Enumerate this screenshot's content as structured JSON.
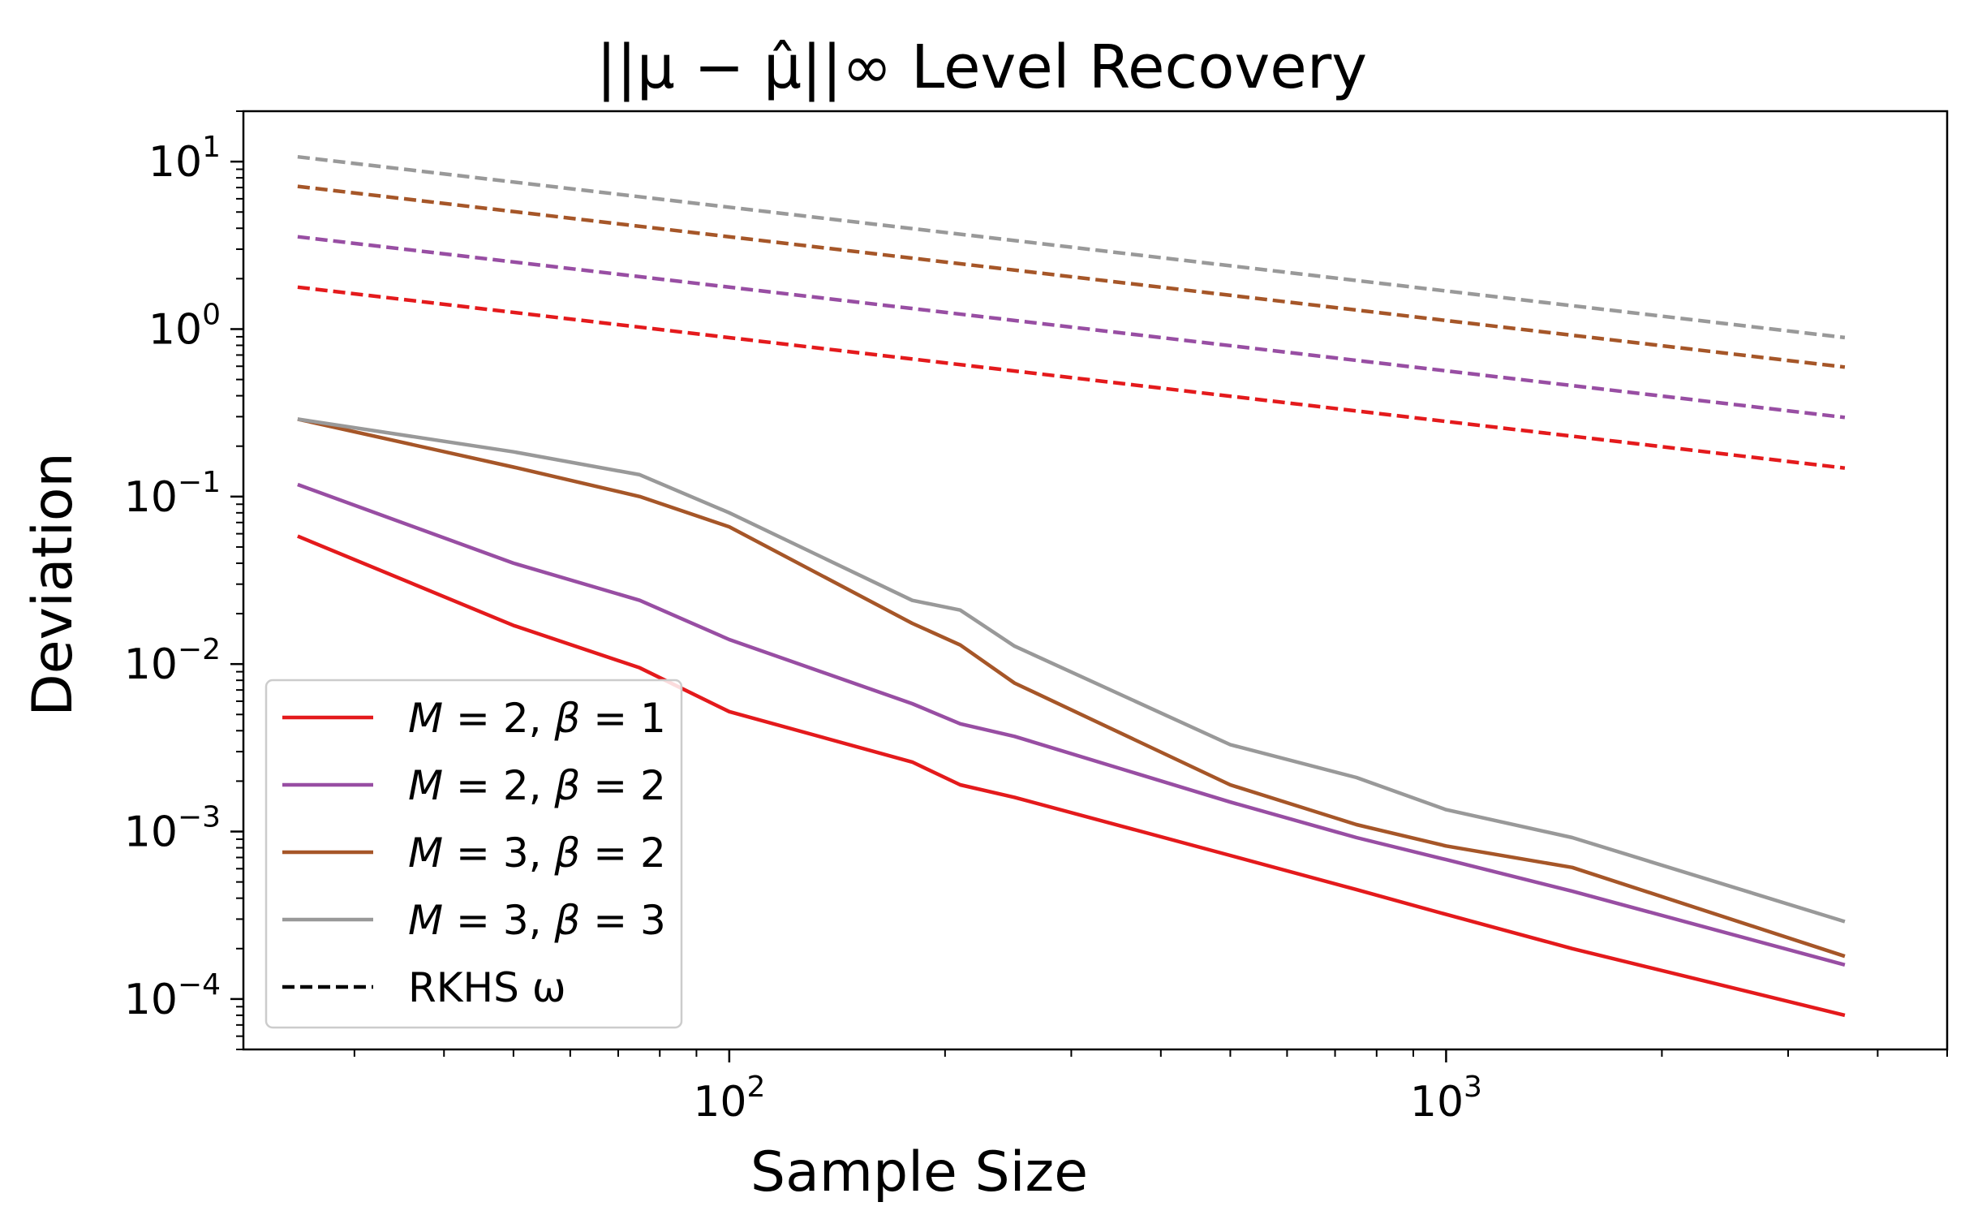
{
  "chart_data": {
    "type": "line",
    "title": "||μ − μ̂||∞ Level Recovery",
    "xlabel": "Sample Size",
    "ylabel": "Deviation",
    "xscale": "log",
    "yscale": "log",
    "xlim": [
      21,
      5000
    ],
    "ylim": [
      5e-05,
      20
    ],
    "x_ticks": [
      {
        "base": "10",
        "exp": "2",
        "value": 100
      },
      {
        "base": "10",
        "exp": "3",
        "value": 1000
      }
    ],
    "y_ticks": [
      {
        "base": "10",
        "exp": "1",
        "value": 10
      },
      {
        "base": "10",
        "exp": "0",
        "value": 1
      },
      {
        "base": "10",
        "exp": "−1",
        "value": 0.1
      },
      {
        "base": "10",
        "exp": "−2",
        "value": 0.01
      },
      {
        "base": "10",
        "exp": "−3",
        "value": 0.001
      },
      {
        "base": "10",
        "exp": "−4",
        "value": 0.0001
      }
    ],
    "series": [
      {
        "name": "M = 2, β = 1",
        "M": "2",
        "beta": "1",
        "style": "solid",
        "color": "#e41a1c",
        "x": [
          25,
          50,
          75,
          100,
          180,
          210,
          250,
          500,
          750,
          1000,
          1500,
          3600
        ],
        "y": [
          0.058,
          0.017,
          0.0095,
          0.0052,
          0.0026,
          0.0019,
          0.0016,
          0.00072,
          0.00045,
          0.00032,
          0.0002,
          8e-05
        ]
      },
      {
        "name": "M = 2, β = 2",
        "M": "2",
        "beta": "2",
        "style": "solid",
        "color": "#984ea3",
        "x": [
          25,
          50,
          75,
          100,
          180,
          210,
          250,
          500,
          750,
          1000,
          1500,
          3600
        ],
        "y": [
          0.118,
          0.04,
          0.024,
          0.014,
          0.0058,
          0.0044,
          0.0037,
          0.0015,
          0.00092,
          0.00068,
          0.00044,
          0.00016
        ]
      },
      {
        "name": "M = 3, β = 2",
        "M": "3",
        "beta": "2",
        "style": "solid",
        "color": "#a65628",
        "x": [
          25,
          50,
          75,
          100,
          180,
          210,
          250,
          500,
          750,
          1000,
          1500,
          3600
        ],
        "y": [
          0.29,
          0.15,
          0.1,
          0.066,
          0.0175,
          0.013,
          0.0077,
          0.0019,
          0.0011,
          0.00082,
          0.00061,
          0.00018
        ]
      },
      {
        "name": "M = 3, β = 3",
        "M": "3",
        "beta": "3",
        "style": "solid",
        "color": "#999999",
        "x": [
          25,
          50,
          75,
          100,
          180,
          210,
          250,
          500,
          750,
          1000,
          1500,
          3600
        ],
        "y": [
          0.29,
          0.185,
          0.135,
          0.08,
          0.024,
          0.021,
          0.0128,
          0.0033,
          0.0021,
          0.00135,
          0.00092,
          0.00029
        ]
      },
      {
        "name": "RKHS ω (M = 2, β = 1)",
        "style": "dashed",
        "color": "#e41a1c",
        "x": [
          25,
          3600
        ],
        "y": [
          1.78,
          0.148
        ]
      },
      {
        "name": "RKHS ω (M = 2, β = 2)",
        "style": "dashed",
        "color": "#984ea3",
        "x": [
          25,
          3600
        ],
        "y": [
          3.56,
          0.297
        ]
      },
      {
        "name": "RKHS ω (M = 3, β = 2)",
        "style": "dashed",
        "color": "#a65628",
        "x": [
          25,
          3600
        ],
        "y": [
          7.12,
          0.593
        ]
      },
      {
        "name": "RKHS ω (M = 3, β = 3)",
        "style": "dashed",
        "color": "#999999",
        "x": [
          25,
          3600
        ],
        "y": [
          10.68,
          0.89
        ]
      }
    ],
    "legend": {
      "position": "lower-left",
      "rkhs_label": "RKHS ω"
    }
  }
}
